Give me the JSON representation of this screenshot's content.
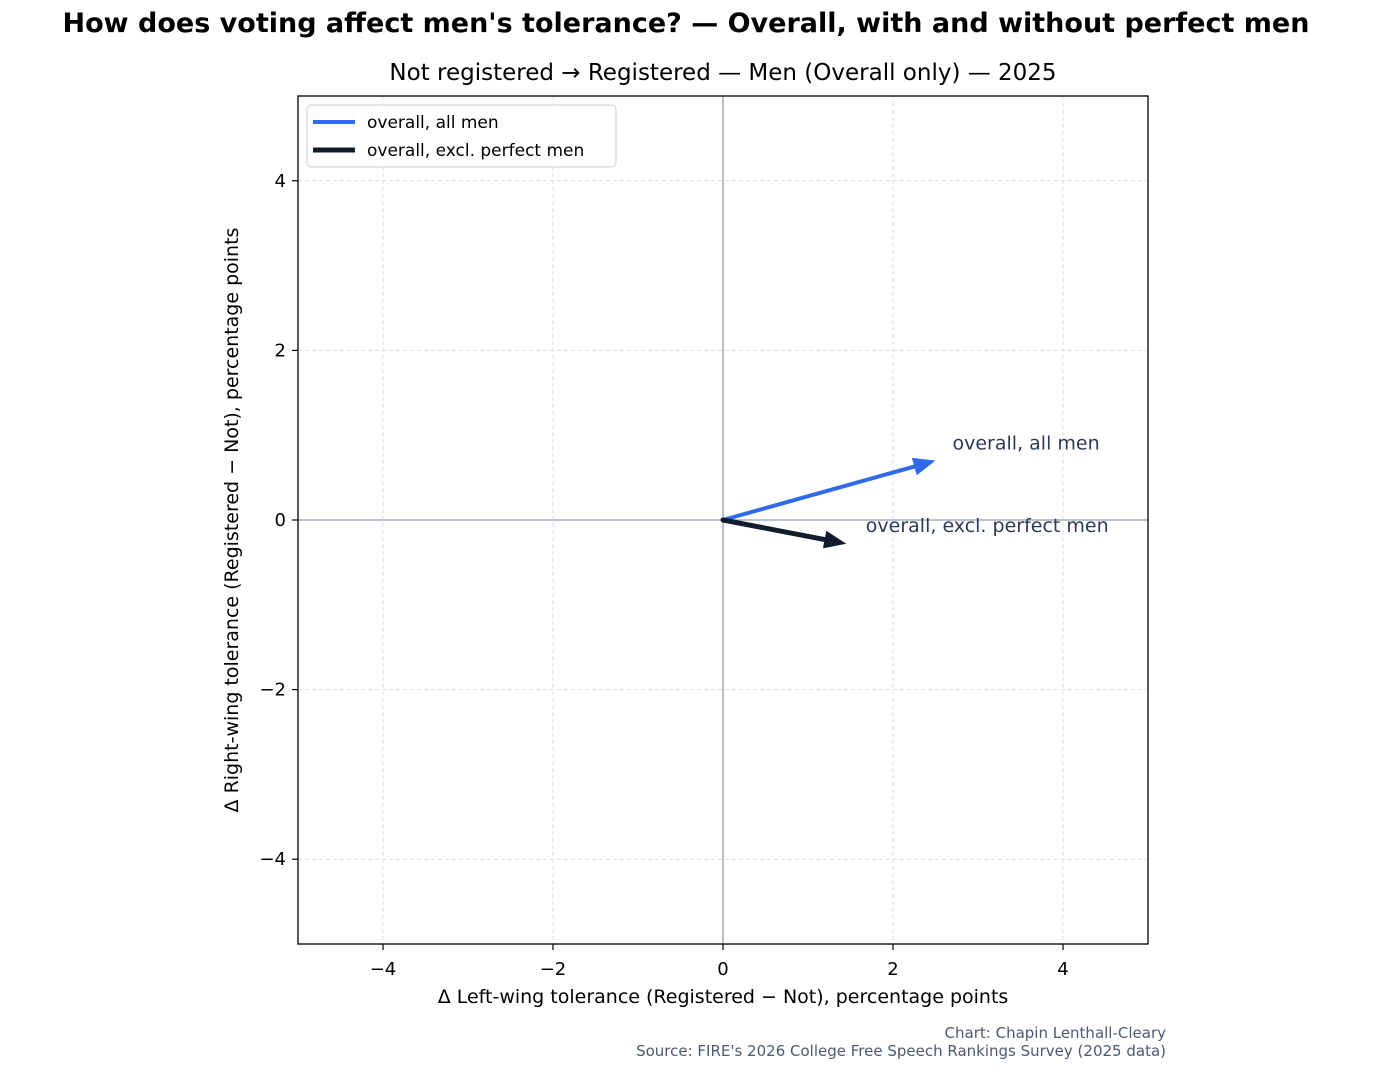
{
  "chart_data": {
    "type": "quiver",
    "suptitle": "How does voting affect men's tolerance? — Overall, with and without perfect men",
    "title": "Not registered → Registered — Men (Overall only) — 2025",
    "xlabel": "Δ Left-wing tolerance (Registered − Not), percentage points",
    "ylabel": "Δ Right-wing tolerance (Registered − Not), percentage points",
    "xlim": [
      -5,
      5
    ],
    "ylim": [
      -5,
      5
    ],
    "xticks": [
      -4,
      -2,
      0,
      2,
      4
    ],
    "yticks": [
      -4,
      -2,
      0,
      2,
      4
    ],
    "x_tick_labels": [
      "−4",
      "−2",
      "0",
      "2",
      "4"
    ],
    "y_tick_labels": [
      "−4",
      "−2",
      "0",
      "2",
      "4"
    ],
    "grid": true,
    "legend_position": "top-left",
    "series": [
      {
        "name": "overall, all men",
        "color": "#2f6ae8",
        "x0": 0,
        "y0": 0,
        "dx": 2.5,
        "dy": 0.7,
        "annotation": "overall, all men",
        "annotation_x": 2.7,
        "annotation_y": 0.9
      },
      {
        "name": "overall, excl. perfect men",
        "color": "#131c2e",
        "x0": 0,
        "y0": 0,
        "dx": 1.45,
        "dy": -0.28,
        "annotation": "overall, excl. perfect men",
        "annotation_x": 1.68,
        "annotation_y": -0.07
      }
    ]
  },
  "credits": {
    "chart": "Chart: Chapin Lenthall-Cleary",
    "source": "Source: FIRE's 2026 College Free Speech Rankings Survey (2025 data)"
  }
}
